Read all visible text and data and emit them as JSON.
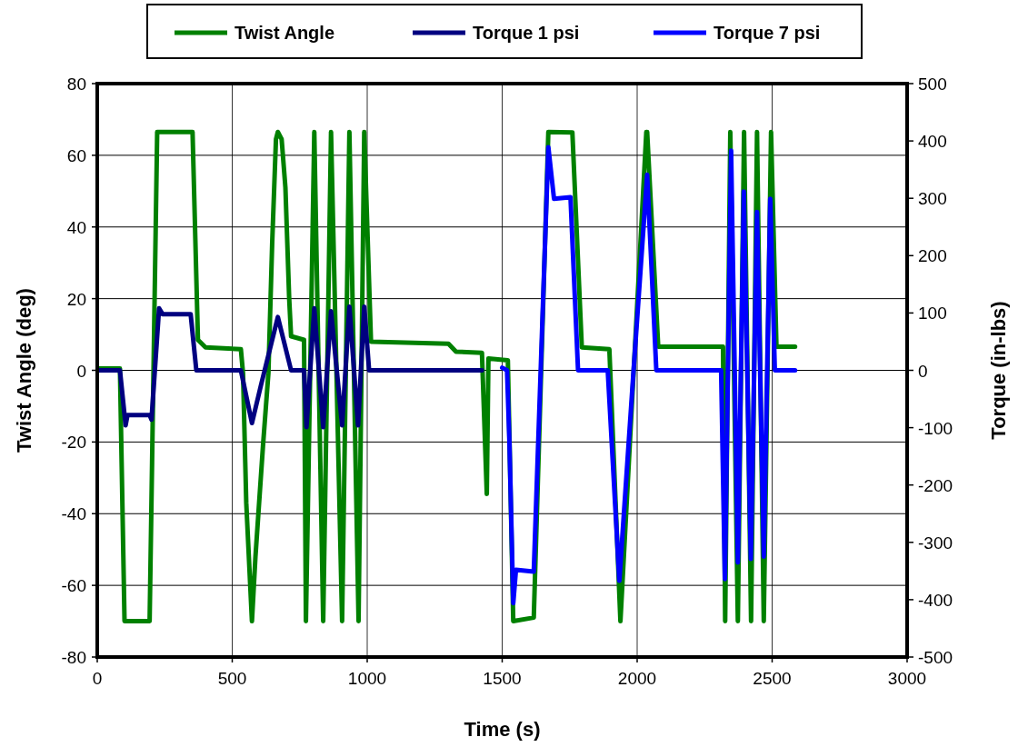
{
  "chart_data": {
    "type": "line",
    "xlabel": "Time (s)",
    "ylabel": "Twist Angle (deg)",
    "y2label": "Torque (in-lbs)",
    "xlim": [
      0,
      3000
    ],
    "xticks": [
      0,
      500,
      1000,
      1500,
      2000,
      2500,
      3000
    ],
    "ylim": [
      -80,
      80
    ],
    "yticks": [
      -80,
      -60,
      -40,
      -20,
      0,
      20,
      40,
      60,
      80
    ],
    "y2lim": [
      -500,
      500
    ],
    "y2ticks": [
      -500,
      -400,
      -300,
      -200,
      -100,
      0,
      100,
      200,
      300,
      400,
      500
    ],
    "grid": true,
    "legend": "top",
    "marker": "none",
    "line_style": "solid",
    "series": [
      {
        "name": "Twist Angle",
        "color": "#008000",
        "x": [
          0,
          84,
          101,
          194,
          222,
          353,
          373,
          401,
          532,
          540,
          552,
          573,
          586,
          614,
          634,
          648,
          662,
          669,
          683,
          697,
          711,
          718,
          766,
          773,
          804,
          837,
          866,
          907,
          934,
          968,
          989,
          1014,
          1301,
          1329,
          1425,
          1443,
          1449,
          1521,
          1541,
          1617,
          1671,
          1760,
          1795,
          1897,
          1938,
          2034,
          2037,
          2078,
          2318,
          2326,
          2345,
          2373,
          2396,
          2422,
          2444,
          2469,
          2496,
          2516,
          2585
        ],
        "values": [
          0.5,
          0.5,
          -70,
          -70,
          66.5,
          66.5,
          8.5,
          6.4,
          5.9,
          -0.8,
          -37,
          -70,
          -52,
          -21,
          -0.8,
          35.5,
          64.5,
          66.5,
          64.5,
          51,
          20,
          9.5,
          8.5,
          -70,
          66.5,
          -70,
          66.5,
          -70,
          66.5,
          -70,
          66.5,
          8,
          7.4,
          5.2,
          4.9,
          -34.5,
          3.3,
          2.8,
          -70,
          -69,
          66.5,
          66.4,
          6.4,
          5.9,
          -70,
          66.5,
          66.5,
          6.6,
          6.6,
          -70,
          66.5,
          -70,
          66.5,
          -70,
          66.5,
          -70,
          66.5,
          6.6,
          6.6
        ]
      },
      {
        "name": "Torque 1 psi",
        "color": "#000080",
        "axis": "y2",
        "x": [
          0,
          84,
          105,
          112,
          194,
          201,
          229,
          242,
          346,
          367,
          532,
          573,
          607,
          669,
          718,
          766,
          775,
          804,
          837,
          866,
          907,
          934,
          966,
          989,
          1007,
          1425
        ],
        "values": [
          0,
          0,
          -96,
          -78,
          -78,
          -86,
          108,
          98,
          98,
          0,
          0,
          -92,
          -25,
          93,
          0,
          0,
          -99,
          108,
          -99,
          103,
          -96,
          111,
          -96,
          111,
          0,
          0
        ]
      },
      {
        "name": "Torque 7 psi",
        "color": "#0000ff",
        "axis": "y2",
        "x": [
          1500,
          1518,
          1527,
          1541,
          1551,
          1617,
          1671,
          1692,
          1753,
          1781,
          1891,
          1934,
          1986,
          2037,
          2071,
          2311,
          2325,
          2348,
          2373,
          2395,
          2421,
          2444,
          2469,
          2493,
          2510,
          2585
        ],
        "values": [
          4.5,
          0,
          -128,
          -406,
          -348,
          -351,
          389,
          299,
          302,
          0,
          0,
          -367,
          -5,
          341,
          0,
          0,
          -364,
          383,
          -335,
          312,
          -329,
          276,
          -325,
          299,
          0,
          0
        ]
      }
    ]
  }
}
